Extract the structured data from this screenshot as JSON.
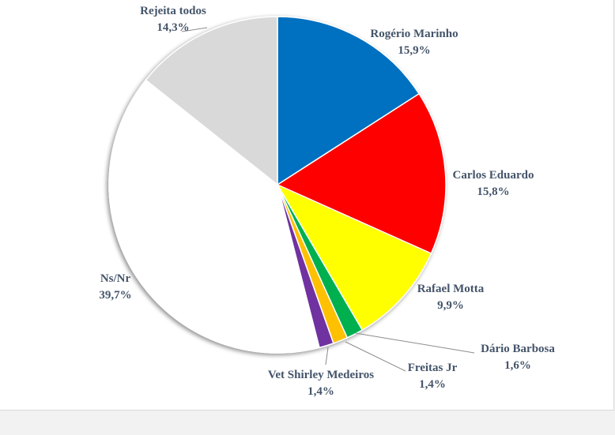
{
  "chart_data": {
    "type": "pie",
    "title": "",
    "slices": [
      {
        "name": "Rogério Marinho",
        "value": 15.9,
        "label": "15,9%",
        "color": "#0070c0"
      },
      {
        "name": "Carlos Eduardo",
        "value": 15.8,
        "label": "15,8%",
        "color": "#ff0000"
      },
      {
        "name": "Rafael Motta",
        "value": 9.9,
        "label": "9,9%",
        "color": "#ffff00"
      },
      {
        "name": "Dário Barbosa",
        "value": 1.6,
        "label": "1,6%",
        "color": "#00b050"
      },
      {
        "name": "Freitas Jr",
        "value": 1.4,
        "label": "1,4%",
        "color": "#ffc000"
      },
      {
        "name": "Vet Shirley Medeiros",
        "value": 1.4,
        "label": "1,4%",
        "color": "#7030a0"
      },
      {
        "name": "Ns/Nr",
        "value": 39.7,
        "label": "39,7%",
        "color": "#ffffff"
      },
      {
        "name": "Rejeita todos",
        "value": 14.3,
        "label": "14,3%",
        "color": "#d9d9d9"
      }
    ],
    "start_angle": "12 o'clock",
    "direction": "clockwise",
    "legend": "none",
    "data_labels": "category name and percentage"
  }
}
